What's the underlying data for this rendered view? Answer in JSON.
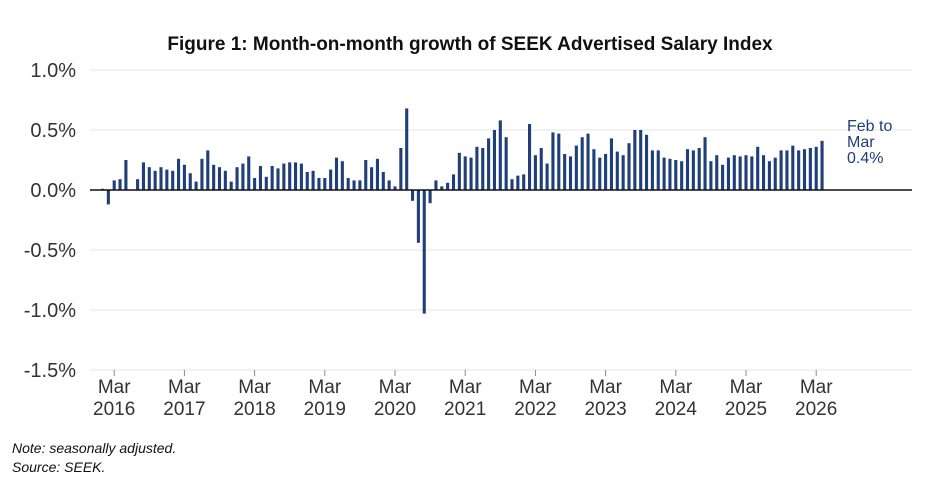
{
  "chart_data": {
    "type": "bar",
    "title": "Figure 1: Month-on-month growth of SEEK Advertised Salary Index",
    "xlabel": "",
    "ylabel": "",
    "ylim": [
      -1.5,
      1.0
    ],
    "yticks": [
      "1.0%",
      "0.5%",
      "0.0%",
      "-0.5%",
      "-1.0%",
      "-1.5%"
    ],
    "ytick_values": [
      1.0,
      0.5,
      0.0,
      -0.5,
      -1.0,
      -1.5
    ],
    "x_tick_labels": [
      {
        "month": "Mar",
        "year": "2016",
        "index": 2
      },
      {
        "month": "Mar",
        "year": "2017",
        "index": 14
      },
      {
        "month": "Mar",
        "year": "2018",
        "index": 26
      },
      {
        "month": "Mar",
        "year": "2019",
        "index": 38
      },
      {
        "month": "Mar",
        "year": "2020",
        "index": 50
      },
      {
        "month": "Mar",
        "year": "2021",
        "index": 62
      },
      {
        "month": "Mar",
        "year": "2022",
        "index": 74
      },
      {
        "month": "Mar",
        "year": "2023",
        "index": 86
      },
      {
        "month": "Mar",
        "year": "2024",
        "index": 98
      },
      {
        "month": "Mar",
        "year": "2025",
        "index": 110
      },
      {
        "month": "Mar",
        "year": "2026",
        "index": 122
      }
    ],
    "grid": true,
    "bar_color": "#1f3f7a",
    "zero_line_color": "#111111",
    "values": [
      0.01,
      -0.12,
      0.08,
      0.09,
      0.25,
      0.0,
      0.09,
      0.23,
      0.19,
      0.16,
      0.19,
      0.17,
      0.16,
      0.26,
      0.21,
      0.14,
      0.07,
      0.26,
      0.33,
      0.21,
      0.19,
      0.16,
      0.07,
      0.19,
      0.22,
      0.28,
      0.1,
      0.2,
      0.11,
      0.2,
      0.18,
      0.22,
      0.23,
      0.23,
      0.22,
      0.15,
      0.16,
      0.1,
      0.1,
      0.17,
      0.27,
      0.24,
      0.1,
      0.08,
      0.08,
      0.25,
      0.19,
      0.26,
      0.15,
      0.08,
      0.03,
      0.35,
      0.68,
      -0.09,
      -0.44,
      -1.03,
      -0.11,
      0.08,
      0.03,
      0.06,
      0.13,
      0.31,
      0.28,
      0.27,
      0.36,
      0.35,
      0.43,
      0.5,
      0.58,
      0.44,
      0.09,
      0.12,
      0.13,
      0.55,
      0.29,
      0.35,
      0.22,
      0.48,
      0.47,
      0.3,
      0.28,
      0.37,
      0.44,
      0.47,
      0.34,
      0.27,
      0.3,
      0.43,
      0.32,
      0.29,
      0.39,
      0.5,
      0.5,
      0.46,
      0.33,
      0.33,
      0.27,
      0.26,
      0.25,
      0.24,
      0.34,
      0.33,
      0.35,
      0.44,
      0.24,
      0.29,
      0.21,
      0.27,
      0.29,
      0.28,
      0.29,
      0.28,
      0.36,
      0.29,
      0.24,
      0.27,
      0.33,
      0.33,
      0.37,
      0.33,
      0.34,
      0.35,
      0.36,
      0.41
    ],
    "annotation": [
      "Feb to",
      "Mar",
      "0.4%"
    ]
  },
  "notes": {
    "note": "Note: seasonally adjusted.",
    "source": "Source: SEEK."
  }
}
